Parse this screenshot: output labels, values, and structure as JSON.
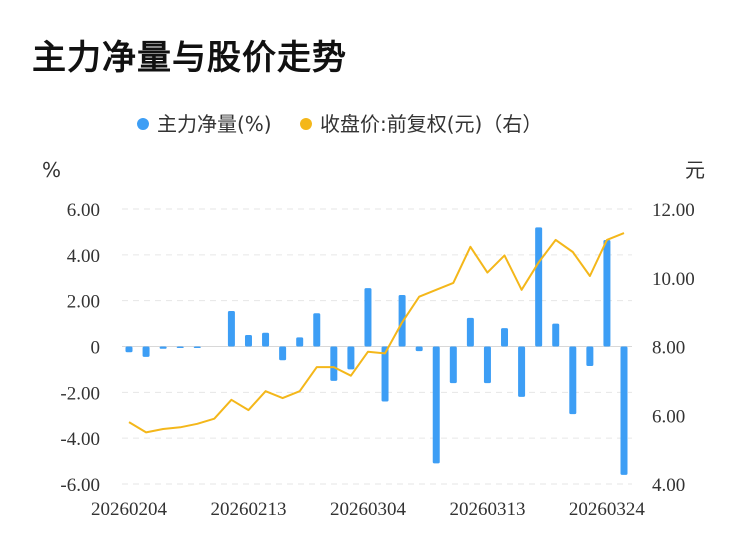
{
  "title": "主力净量与股价走势",
  "chart_data": {
    "type": "bar+line",
    "legend": {
      "placement": "top-center",
      "items": [
        {
          "label": "主力净量(%)",
          "color": "#3d9ef5"
        },
        {
          "label": "收盘价:前复权(元)（右）",
          "color": "#f4b71a"
        }
      ]
    },
    "left_axis": {
      "unit": "%",
      "ticks": [
        "6.00",
        "4.00",
        "2.00",
        "0",
        "-2.00",
        "-4.00",
        "-6.00"
      ],
      "range": [
        -6,
        6
      ]
    },
    "right_axis": {
      "unit": "元",
      "ticks": [
        "12.00",
        "10.00",
        "8.00",
        "6.00",
        "4.00"
      ],
      "range": [
        4,
        12
      ]
    },
    "x_tick_labels": [
      "20260204",
      "20260213",
      "20260304",
      "20260313",
      "20260324"
    ],
    "x_tick_indices": [
      0,
      7,
      14,
      21,
      28
    ],
    "grid": "horizontal dashed",
    "series": [
      {
        "name": "主力净量(%)",
        "type": "bar",
        "color": "#3d9ef5",
        "values": [
          -0.25,
          -0.45,
          -0.1,
          -0.05,
          -0.05,
          0,
          1.55,
          0.5,
          0.6,
          -0.6,
          0.4,
          1.45,
          -1.5,
          -1.0,
          2.55,
          -2.4,
          2.25,
          -0.2,
          -5.1,
          -1.6,
          1.25,
          -1.6,
          0.8,
          -2.2,
          5.2,
          1.0,
          -2.95,
          -0.85,
          4.65,
          -5.6
        ]
      },
      {
        "name": "收盘价:前复权(元)（右）",
        "type": "line",
        "color": "#f4b71a",
        "values": [
          5.8,
          5.5,
          5.6,
          5.65,
          5.75,
          5.9,
          6.45,
          6.15,
          6.7,
          6.5,
          6.7,
          7.4,
          7.4,
          7.15,
          7.85,
          7.8,
          8.7,
          9.45,
          9.65,
          9.85,
          10.9,
          10.15,
          10.65,
          9.65,
          10.45,
          11.1,
          10.75,
          10.05,
          11.1,
          11.3
        ]
      }
    ]
  }
}
